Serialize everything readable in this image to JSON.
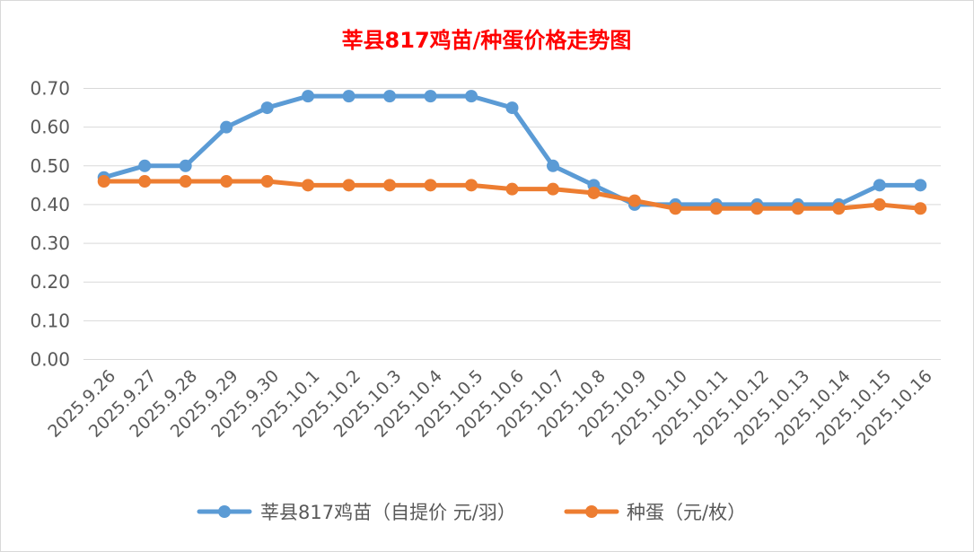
{
  "chart_data": {
    "type": "line",
    "title": "莘县817鸡苗/种蛋价格走势图",
    "xlabel": "",
    "ylabel": "",
    "categories": [
      "2025.9.26",
      "2025.9.27",
      "2025.9.28",
      "2025.9.29",
      "2025.9.30",
      "2025.10.1",
      "2025.10.2",
      "2025.10.3",
      "2025.10.4",
      "2025.10.5",
      "2025.10.6",
      "2025.10.7",
      "2025.10.8",
      "2025.10.9",
      "2025.10.10",
      "2025.10.11",
      "2025.10.12",
      "2025.10.13",
      "2025.10.14",
      "2025.10.15",
      "2025.10.16"
    ],
    "ylim": [
      0,
      0.7
    ],
    "yticks": [
      "0.00",
      "0.10",
      "0.20",
      "0.30",
      "0.40",
      "0.50",
      "0.60",
      "0.70"
    ],
    "grid": true,
    "legend_position": "bottom",
    "series": [
      {
        "name": "莘县817鸡苗（自提价 元/羽）",
        "color": "#5B9BD5",
        "values": [
          0.47,
          0.5,
          0.5,
          0.6,
          0.65,
          0.68,
          0.68,
          0.68,
          0.68,
          0.68,
          0.65,
          0.5,
          0.45,
          0.4,
          0.4,
          0.4,
          0.4,
          0.4,
          0.4,
          0.45,
          0.45
        ]
      },
      {
        "name": "种蛋（元/枚）",
        "color": "#ED7D31",
        "values": [
          0.46,
          0.46,
          0.46,
          0.46,
          0.46,
          0.45,
          0.45,
          0.45,
          0.45,
          0.45,
          0.44,
          0.44,
          0.43,
          0.41,
          0.39,
          0.39,
          0.39,
          0.39,
          0.39,
          0.4,
          0.39
        ]
      }
    ],
    "title_color": "#FF0000"
  }
}
